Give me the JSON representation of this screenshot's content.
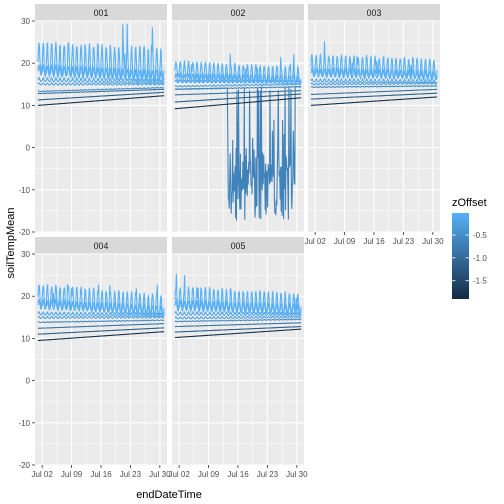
{
  "chart_data": {
    "type": "line",
    "xlabel": "endDateTime",
    "ylabel": "soilTempMean",
    "ylim": [
      -20,
      30
    ],
    "y_ticks": [
      30,
      20,
      10,
      0,
      -10,
      -20
    ],
    "x_ticks": [
      "Jul 02",
      "Jul 09",
      "Jul 16",
      "Jul 23",
      "Jul 30"
    ],
    "x_tick_days": [
      2,
      9,
      16,
      23,
      30
    ],
    "xlim_days": [
      0.3,
      31.7
    ],
    "grid": true,
    "legend": {
      "title": "zOffset",
      "position": "right",
      "ticks": [
        "-0.5",
        "-1.0",
        "-1.5"
      ],
      "tick_values": [
        -0.5,
        -1.0,
        -1.5
      ],
      "range": [
        -1.9,
        -0.02
      ],
      "color_low": "#132B43",
      "color_high": "#56B1F7"
    },
    "panels": [
      {
        "name": "001",
        "series": [
          {
            "zOffset": -0.02,
            "start": 20.0,
            "end": 18.5,
            "amplitude": 5.0
          },
          {
            "zOffset": -0.06,
            "start": 18.0,
            "end": 16.5,
            "amplitude": 1.6
          },
          {
            "zOffset": -0.16,
            "start": 16.0,
            "end": 15.5,
            "amplitude": 0.6
          },
          {
            "zOffset": -0.26,
            "start": 15.0,
            "end": 15.0,
            "amplitude": 0.3
          },
          {
            "zOffset": -0.56,
            "start": 13.3,
            "end": 14.2,
            "amplitude": 0.1
          },
          {
            "zOffset": -0.86,
            "start": 12.8,
            "end": 13.8,
            "amplitude": 0.05
          },
          {
            "zOffset": -1.16,
            "start": 11.3,
            "end": 13.1,
            "amplitude": 0.0
          },
          {
            "zOffset": -1.76,
            "start": 10.0,
            "end": 12.3,
            "amplitude": 0.0
          }
        ]
      },
      {
        "name": "002",
        "series": [
          {
            "zOffset": -0.02,
            "start": 18.0,
            "end": 16.5,
            "amplitude": 2.5
          },
          {
            "zOffset": -0.06,
            "start": 16.3,
            "end": 15.8,
            "amplitude": 1.2
          },
          {
            "zOffset": -0.16,
            "start": 15.6,
            "end": 15.5,
            "amplitude": 0.4
          },
          {
            "zOffset": -0.26,
            "start": 14.5,
            "end": 15.0,
            "amplitude": 0.2
          },
          {
            "zOffset": -0.56,
            "start": 13.8,
            "end": 14.4,
            "amplitude": 0.1
          },
          {
            "zOffset": -0.86,
            "start": 12.5,
            "end": 13.5,
            "amplitude": 0.0
          },
          {
            "zOffset": -1.16,
            "start": 10.8,
            "end": 12.7,
            "amplitude": 0.0
          },
          {
            "zOffset": -1.76,
            "start": 9.2,
            "end": 11.8,
            "amplitude": 0.0
          }
        ],
        "anomaly": {
          "zOffset": -0.66,
          "day_start": 13.5,
          "day_end": 29.5,
          "low": -17.5,
          "high": 14.5
        }
      },
      {
        "name": "003",
        "series": [
          {
            "zOffset": -0.02,
            "start": 19.0,
            "end": 18.0,
            "amplitude": 3.0
          },
          {
            "zOffset": -0.06,
            "start": 17.5,
            "end": 16.8,
            "amplitude": 1.3
          },
          {
            "zOffset": -0.16,
            "start": 15.8,
            "end": 15.6,
            "amplitude": 0.5
          },
          {
            "zOffset": -0.26,
            "start": 15.0,
            "end": 15.2,
            "amplitude": 0.3
          },
          {
            "zOffset": -0.56,
            "start": 14.3,
            "end": 14.6,
            "amplitude": 0.1
          },
          {
            "zOffset": -0.86,
            "start": 12.6,
            "end": 13.8,
            "amplitude": 0.0
          },
          {
            "zOffset": -1.16,
            "start": 11.5,
            "end": 12.9,
            "amplitude": 0.0
          },
          {
            "zOffset": -1.76,
            "start": 10.0,
            "end": 12.0,
            "amplitude": 0.0
          }
        ]
      },
      {
        "name": "004",
        "series": [
          {
            "zOffset": -0.02,
            "start": 19.5,
            "end": 17.0,
            "amplitude": 3.2
          },
          {
            "zOffset": -0.06,
            "start": 17.8,
            "end": 16.2,
            "amplitude": 1.4
          },
          {
            "zOffset": -0.16,
            "start": 15.8,
            "end": 15.5,
            "amplitude": 0.5
          },
          {
            "zOffset": -0.26,
            "start": 14.9,
            "end": 15.0,
            "amplitude": 0.3
          },
          {
            "zOffset": -0.56,
            "start": 13.8,
            "end": 14.3,
            "amplitude": 0.1
          },
          {
            "zOffset": -0.86,
            "start": 12.4,
            "end": 13.5,
            "amplitude": 0.0
          },
          {
            "zOffset": -1.16,
            "start": 11.0,
            "end": 12.5,
            "amplitude": 0.0
          },
          {
            "zOffset": -1.76,
            "start": 9.5,
            "end": 11.6,
            "amplitude": 0.0
          }
        ]
      },
      {
        "name": "005",
        "series": [
          {
            "zOffset": -0.02,
            "start": 19.0,
            "end": 17.5,
            "amplitude": 3.2
          },
          {
            "zOffset": -0.06,
            "start": 17.5,
            "end": 16.5,
            "amplitude": 1.5
          },
          {
            "zOffset": -0.16,
            "start": 15.8,
            "end": 15.6,
            "amplitude": 0.5
          },
          {
            "zOffset": -0.26,
            "start": 14.8,
            "end": 15.0,
            "amplitude": 0.3
          },
          {
            "zOffset": -0.56,
            "start": 14.0,
            "end": 14.5,
            "amplitude": 0.1
          },
          {
            "zOffset": -0.86,
            "start": 12.8,
            "end": 13.7,
            "amplitude": 0.0
          },
          {
            "zOffset": -1.16,
            "start": 11.5,
            "end": 12.8,
            "amplitude": 0.0
          },
          {
            "zOffset": -1.76,
            "start": 10.2,
            "end": 12.2,
            "amplitude": 0.0
          }
        ]
      }
    ]
  }
}
